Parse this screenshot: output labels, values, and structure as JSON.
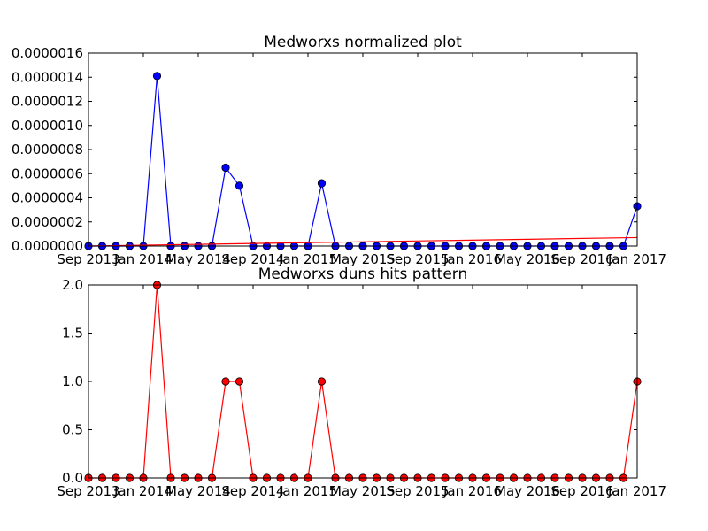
{
  "chart_data": [
    {
      "type": "line",
      "title": "Medworxs normalized plot",
      "xlabel": "",
      "ylabel": "",
      "x_ticks": [
        "Sep 2013",
        "Jan 2014",
        "May 2014",
        "Sep 2014",
        "Jan 2015",
        "May 2015",
        "Sep 2015",
        "Jan 2016",
        "May 2016",
        "Sep 2016",
        "Jan 2017"
      ],
      "y_ticks": [
        "0.0000000",
        "0.0000002",
        "0.0000004",
        "0.0000006",
        "0.0000008",
        "0.0000010",
        "0.0000012",
        "0.0000014",
        "0.0000016"
      ],
      "ylim": [
        0,
        1.6e-06
      ],
      "xlim": [
        "2013-09",
        "2017-01"
      ],
      "x": [
        "2013-09",
        "2013-10",
        "2013-11",
        "2013-12",
        "2014-01",
        "2014-02",
        "2014-03",
        "2014-04",
        "2014-05",
        "2014-06",
        "2014-07",
        "2014-08",
        "2014-09",
        "2014-10",
        "2014-11",
        "2014-12",
        "2015-01",
        "2015-02",
        "2015-03",
        "2015-04",
        "2015-05",
        "2015-06",
        "2015-07",
        "2015-08",
        "2015-09",
        "2015-10",
        "2015-11",
        "2015-12",
        "2016-01",
        "2016-02",
        "2016-03",
        "2016-04",
        "2016-05",
        "2016-06",
        "2016-07",
        "2016-08",
        "2016-09",
        "2016-10",
        "2016-11",
        "2016-12",
        "2017-01"
      ],
      "series": [
        {
          "color": "#0000ff",
          "marker": "circle",
          "values": [
            0,
            0,
            0,
            0,
            0,
            1.41e-06,
            0,
            0,
            0,
            0,
            6.5e-07,
            5e-07,
            0,
            0,
            0,
            0,
            0,
            5.2e-07,
            0,
            0,
            0,
            0,
            0,
            0,
            0,
            0,
            0,
            0,
            0,
            0,
            0,
            0,
            0,
            0,
            0,
            0,
            0,
            0,
            0,
            0,
            3.3e-07
          ]
        },
        {
          "color": "#ff0000",
          "marker": "none",
          "values": [
            0,
            7e-08
          ],
          "x": [
            "2013-09",
            "2017-01"
          ]
        }
      ]
    },
    {
      "type": "line",
      "title": "Medworxs duns hits pattern",
      "xlabel": "",
      "ylabel": "",
      "x_ticks": [
        "Sep 2013",
        "Jan 2014",
        "May 2014",
        "Sep 2014",
        "Jan 2015",
        "May 2015",
        "Sep 2015",
        "Jan 2016",
        "May 2016",
        "Sep 2016",
        "Jan 2017"
      ],
      "y_ticks": [
        "0.0",
        "0.5",
        "1.0",
        "1.5",
        "2.0"
      ],
      "ylim": [
        0,
        2
      ],
      "xlim": [
        "2013-09",
        "2017-01"
      ],
      "x": [
        "2013-09",
        "2013-10",
        "2013-11",
        "2013-12",
        "2014-01",
        "2014-02",
        "2014-03",
        "2014-04",
        "2014-05",
        "2014-06",
        "2014-07",
        "2014-08",
        "2014-09",
        "2014-10",
        "2014-11",
        "2014-12",
        "2015-01",
        "2015-02",
        "2015-03",
        "2015-04",
        "2015-05",
        "2015-06",
        "2015-07",
        "2015-08",
        "2015-09",
        "2015-10",
        "2015-11",
        "2015-12",
        "2016-01",
        "2016-02",
        "2016-03",
        "2016-04",
        "2016-05",
        "2016-06",
        "2016-07",
        "2016-08",
        "2016-09",
        "2016-10",
        "2016-11",
        "2016-12",
        "2017-01"
      ],
      "series": [
        {
          "color": "#ff0000",
          "marker": "circle",
          "values": [
            0,
            0,
            0,
            0,
            0,
            2,
            0,
            0,
            0,
            0,
            1,
            1,
            0,
            0,
            0,
            0,
            0,
            1,
            0,
            0,
            0,
            0,
            0,
            0,
            0,
            0,
            0,
            0,
            0,
            0,
            0,
            0,
            0,
            0,
            0,
            0,
            0,
            0,
            0,
            0,
            1
          ]
        }
      ]
    }
  ]
}
